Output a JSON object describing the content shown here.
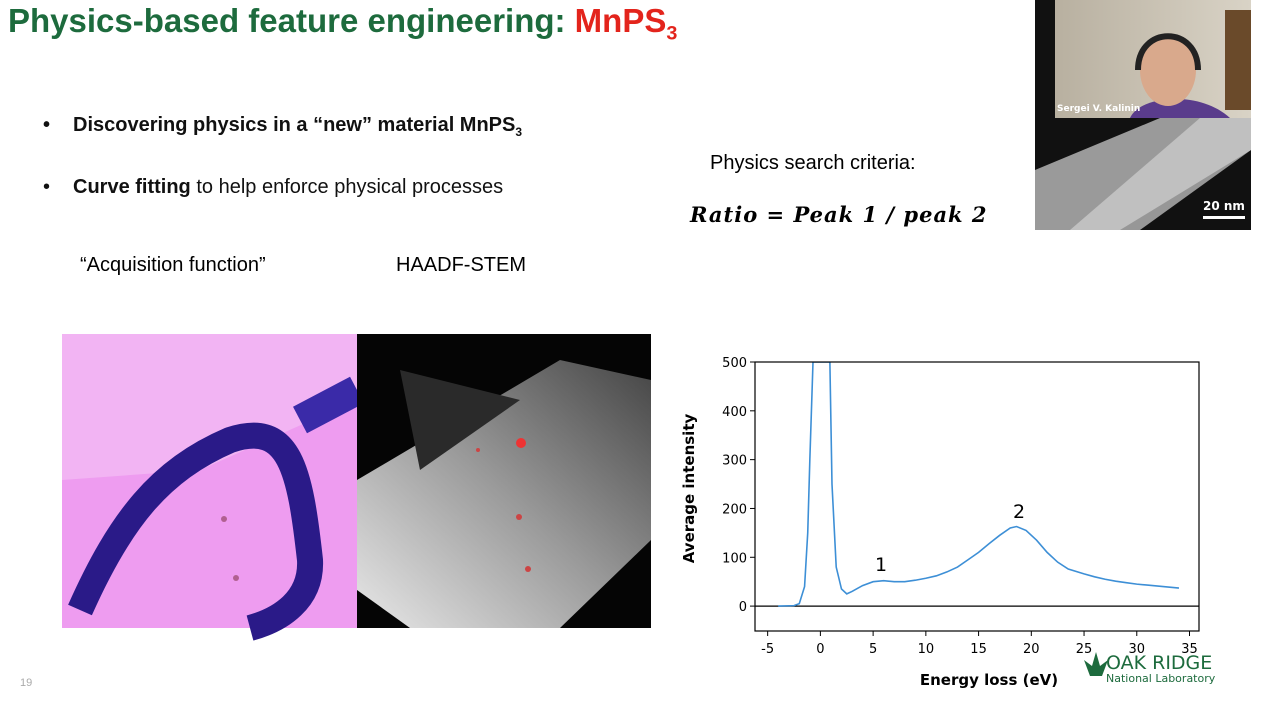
{
  "slide": {
    "title": {
      "main": "Physics-based feature engineering: ",
      "highlight": "MnPS",
      "highlight_sub": "3"
    },
    "bullets": [
      {
        "text": "Discovering physics in a “new” material MnPS",
        "sub": "3"
      },
      {
        "bold": "Curve fitting",
        "text": " to help enforce physical processes"
      }
    ],
    "image_labels": [
      "“Acquisition function”",
      "HAADF-STEM"
    ],
    "criteria_label": "Physics search criteria:",
    "formula": "Ratio = Peak 1 / peak 2",
    "page_number": "19",
    "logo": {
      "name": "OAK RIDGE",
      "sub": "National Laboratory"
    }
  },
  "video": {
    "speaker": "Sergei V. Kalinin",
    "scale_bar": "20 nm"
  },
  "chart_data": {
    "type": "line",
    "xlabel": "Energy loss (eV)",
    "ylabel": "Average intensity",
    "x": [
      -4,
      -2.5,
      -2,
      -1.5,
      -1.2,
      -1,
      -0.7,
      0.9,
      1.1,
      1.5,
      2,
      2.5,
      3,
      4,
      5,
      6,
      7,
      8,
      9,
      10,
      11,
      12,
      13,
      14,
      15,
      16,
      17,
      18,
      18.6,
      19.5,
      20.5,
      21.5,
      22.5,
      23.5,
      25,
      26,
      27,
      28,
      29,
      30,
      31,
      32,
      33,
      34
    ],
    "series": [
      {
        "color": "#3d8fd6",
        "values": [
          0,
          1,
          5,
          40,
          150,
          300,
          500,
          500,
          250,
          80,
          35,
          25,
          30,
          42,
          50,
          52,
          50,
          50,
          53,
          57,
          62,
          70,
          80,
          95,
          110,
          128,
          145,
          160,
          163,
          155,
          135,
          110,
          90,
          76,
          66,
          60,
          55,
          51,
          48,
          45,
          43,
          41,
          39,
          37
        ]
      }
    ],
    "xlim": [
      -6.2,
      35.9
    ],
    "ylim": [
      -51,
      500
    ],
    "xticks": [
      -5,
      0,
      5,
      10,
      15,
      20,
      25,
      30,
      35
    ],
    "yticks": [
      0,
      100,
      200,
      300,
      400,
      500
    ],
    "zero_line": true,
    "annotations": [
      "1",
      "2"
    ]
  }
}
